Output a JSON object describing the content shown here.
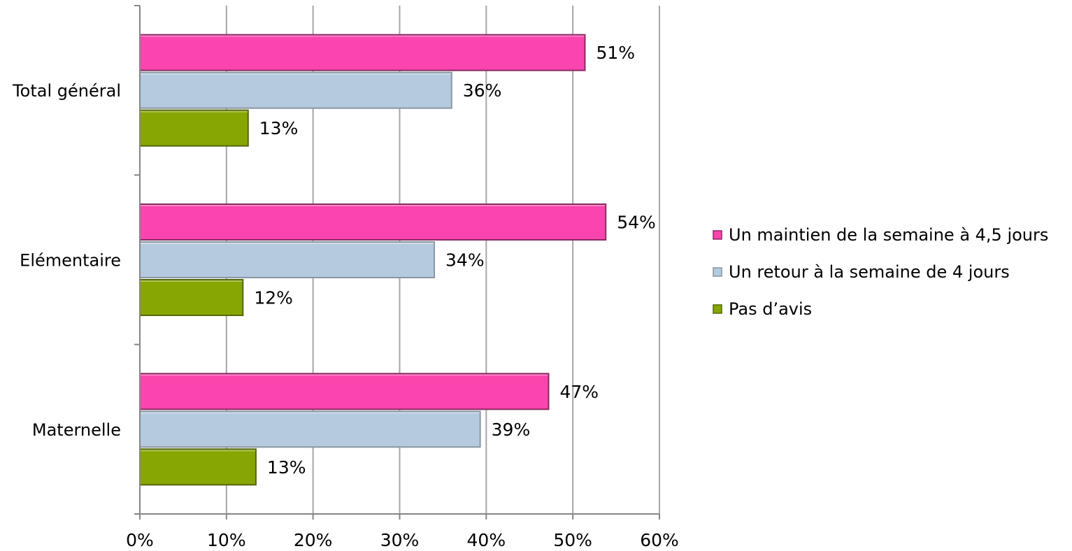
{
  "chart_data": {
    "type": "bar",
    "orientation": "horizontal",
    "categories": [
      "Total général",
      "Elémentaire",
      "Maternelle"
    ],
    "series": [
      {
        "name": "Un maintien de la semaine à 4,5 jours",
        "values": [
          51.4,
          53.8,
          47.2
        ],
        "labels": [
          "51%",
          "54%",
          "47%"
        ],
        "color": "#fb44ad",
        "stroke": "#8a2a62"
      },
      {
        "name": "Un retour à la semaine de 4 jours",
        "values": [
          36.0,
          34.0,
          39.3
        ],
        "labels": [
          "36%",
          "34%",
          "39%"
        ],
        "color": "#b5cade",
        "stroke": "#8a96a3"
      },
      {
        "name": "Pas d’avis",
        "values": [
          12.5,
          11.9,
          13.4
        ],
        "labels": [
          "13%",
          "12%",
          "13%"
        ],
        "color": "#87a602",
        "stroke": "#54680a"
      }
    ],
    "xlim": [
      0,
      60
    ],
    "xticks": [
      0,
      10,
      20,
      30,
      40,
      50,
      60
    ],
    "xtick_labels": [
      "0%",
      "10%",
      "20%",
      "30%",
      "40%",
      "50%",
      "60%"
    ],
    "xlabel": "",
    "ylabel": "",
    "title": "",
    "grid": true,
    "gridline_color": "#a6a6a6",
    "legend_position": "right"
  }
}
